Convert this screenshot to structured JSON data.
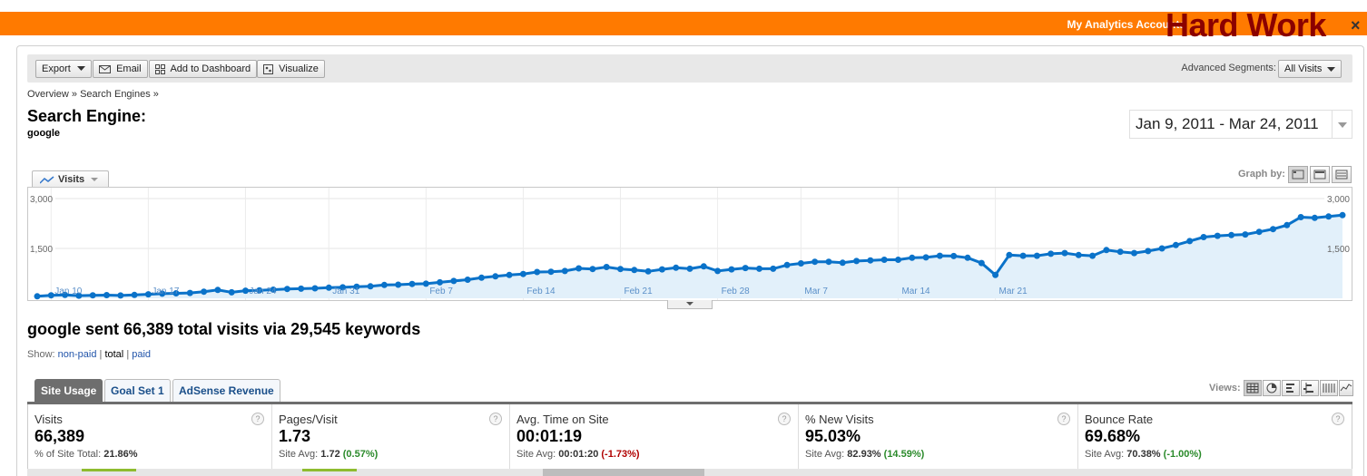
{
  "header": {
    "my_analytics": "My Analytics Accounts",
    "watermark": "Hard Work",
    "close": "×"
  },
  "toolbar": {
    "export_label": "Export",
    "email_label": "Email",
    "dashboard_label": "Add to Dashboard",
    "visualize_label": "Visualize",
    "advanced_segments_label": "Advanced Segments:",
    "segment_value": "All Visits"
  },
  "breadcrumb": "Overview » Search Engines »",
  "page": {
    "title": "Search Engine:",
    "subtitle": "google"
  },
  "date_range": "Jan 9, 2011 - Mar 24, 2011",
  "graph": {
    "metric_label": "Visits",
    "graph_by_label": "Graph by:"
  },
  "chart_data": {
    "type": "line",
    "series": [
      {
        "name": "Visits",
        "values": [
          60,
          90,
          100,
          80,
          90,
          95,
          85,
          100,
          120,
          140,
          150,
          160,
          200,
          250,
          180,
          230,
          240,
          260,
          280,
          290,
          300,
          320,
          330,
          350,
          360,
          400,
          410,
          430,
          440,
          480,
          520,
          560,
          620,
          660,
          700,
          730,
          790,
          800,
          820,
          900,
          880,
          940,
          880,
          850,
          810,
          870,
          920,
          890,
          960,
          820,
          870,
          910,
          890,
          890,
          1000,
          1050,
          1100,
          1100,
          1070,
          1120,
          1140,
          1160,
          1160,
          1220,
          1230,
          1280,
          1270,
          1220,
          1060,
          700,
          1300,
          1280,
          1280,
          1340,
          1360,
          1300,
          1280,
          1450,
          1400,
          1360,
          1420,
          1500,
          1600,
          1720,
          1840,
          1880,
          1900,
          1920,
          2000,
          2080,
          2200,
          2440,
          2420,
          2460,
          2500
        ]
      }
    ],
    "ylim": [
      0,
      3000
    ],
    "ytick_labels": [
      "3,000",
      "1,500"
    ],
    "xtick_labels": [
      "Jan 10",
      "Jan 17",
      "Jan 24",
      "Jan 31",
      "Feb 7",
      "Feb 14",
      "Feb 21",
      "Feb 28",
      "Mar 7",
      "Mar 14",
      "Mar 21"
    ],
    "color": "#0a72c9",
    "fill": "#e2f0fa",
    "grid": true
  },
  "summary": "google sent 66,389 total visits via 29,545 keywords",
  "show": {
    "label": "Show:",
    "non_paid": "non-paid",
    "sep1": "|",
    "total": "total",
    "sep2": "|",
    "paid": "paid"
  },
  "tabs": {
    "site_usage": "Site Usage",
    "goal_set": "Goal Set 1",
    "adsense": "AdSense Revenue"
  },
  "views_label": "Views:",
  "scorecards": [
    {
      "title": "Visits",
      "value": "66,389",
      "sub_label": "% of Site Total:",
      "sub_value": "21.86%",
      "delta": "",
      "delta_type": ""
    },
    {
      "title": "Pages/Visit",
      "value": "1.73",
      "sub_label": "Site Avg:",
      "sub_value": "1.72",
      "delta": "(0.57%)",
      "delta_type": "pos"
    },
    {
      "title": "Avg. Time on Site",
      "value": "00:01:19",
      "sub_label": "Site Avg:",
      "sub_value": "00:01:20",
      "delta": "(-1.73%)",
      "delta_type": "neg"
    },
    {
      "title": "% New Visits",
      "value": "95.03%",
      "sub_label": "Site Avg:",
      "sub_value": "82.93%",
      "delta": "(14.59%)",
      "delta_type": "pos"
    },
    {
      "title": "Bounce Rate",
      "value": "69.68%",
      "sub_label": "Site Avg:",
      "sub_value": "70.38%",
      "delta": "(-1.00%)",
      "delta_type": "pos"
    }
  ],
  "help_icon": "?"
}
